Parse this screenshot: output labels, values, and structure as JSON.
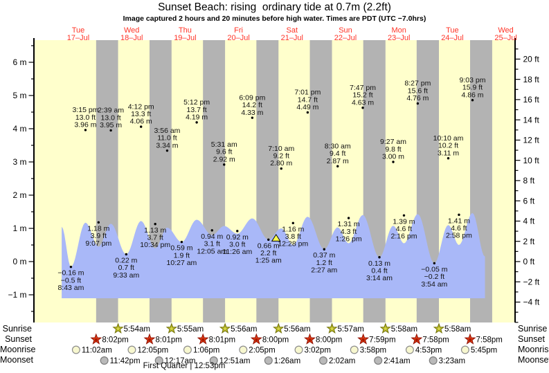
{
  "header": {
    "title": "Sunset Beach: rising  ordinary tide at 0.7m (2.2ft)",
    "subtitle": "Image captured 2 hours and 20 minutes before high water. Times are PDT (UTC −7.0hrs)"
  },
  "colors": {
    "plot_bg": "#ffffcc",
    "night_band": "#b3b3b3",
    "tide_fill": "#a9b8f8",
    "day_label_red": "#ff3326",
    "axis_black": "#000000",
    "event_text": "#111111",
    "sunrise_star_fill": "#b9b92a",
    "sunrise_star_stroke": "#73730a",
    "sunset_star_fill": "#e23d16",
    "sunset_star_stroke": "#8e0f00",
    "sunset_star_center": "#a81800",
    "moonrise_fill": "#f7f7cf",
    "moonrise_stroke": "#8c8c8c",
    "moonset_fill": "#b9b9b9",
    "moonset_stroke": "#7d7d7d",
    "marker_fill": "#ffff4d"
  },
  "chart_data": {
    "type": "area",
    "title": "Sunset Beach: rising ordinary tide at 0.7m (2.2ft)",
    "ylabel_left_unit": "m",
    "ylabel_right_unit": "ft",
    "m_ticks": [
      6,
      5,
      4,
      3,
      2,
      1,
      0,
      -1
    ],
    "ft_ticks": [
      20,
      18,
      16,
      14,
      12,
      10,
      8,
      6,
      4,
      2,
      0,
      -2,
      -4
    ],
    "days": [
      {
        "name": "Tue",
        "date": "17–Jul"
      },
      {
        "name": "Wed",
        "date": "18–Jul"
      },
      {
        "name": "Thu",
        "date": "19–Jul"
      },
      {
        "name": "Fri",
        "date": "20–Jul"
      },
      {
        "name": "Sat",
        "date": "21–Jul"
      },
      {
        "name": "Sun",
        "date": "22–Jul"
      },
      {
        "name": "Mon",
        "date": "23–Jul"
      },
      {
        "name": "Tue",
        "date": "24–Jul"
      },
      {
        "name": "Wed",
        "date": "25–Jul"
      }
    ],
    "events": [
      {
        "d": 0,
        "t": "8:43 am",
        "y": "L",
        "m": "−0.16",
        "ft": "−0.5",
        "c": -0.16
      },
      {
        "d": 0,
        "t": "3:15 pm",
        "y": "H",
        "m": "3.96",
        "ft": "13.0",
        "c": 1.17
      },
      {
        "d": 0,
        "t": "9:07 pm",
        "y": "L",
        "m": "1.18",
        "ft": "3.9",
        "c": 0.45
      },
      {
        "d": 1,
        "t": "2:39 am",
        "y": "H",
        "m": "3.95",
        "ft": "13.0",
        "c": 1.14
      },
      {
        "d": 1,
        "t": "9:33 am",
        "y": "L",
        "m": "0.22",
        "ft": "0.7",
        "c": 0.22
      },
      {
        "d": 1,
        "t": "4:12 pm",
        "y": "H",
        "m": "4.06",
        "ft": "13.3",
        "c": 1.22
      },
      {
        "d": 1,
        "t": "10:34 pm",
        "y": "L",
        "m": "1.13",
        "ft": "3.7",
        "c": 0.4
      },
      {
        "d": 2,
        "t": "3:56 am",
        "y": "H",
        "m": "3.34",
        "ft": "11.0",
        "c": 1.02
      },
      {
        "d": 2,
        "t": "10:27 am",
        "y": "L",
        "m": "0.59",
        "ft": "1.9",
        "c": 0.59
      },
      {
        "d": 2,
        "t": "5:12 pm",
        "y": "H",
        "m": "4.19",
        "ft": "13.7",
        "c": 1.26
      },
      {
        "d": 3,
        "t": "12:05 am",
        "y": "L",
        "m": "0.94",
        "ft": "3.1",
        "c": 0.8
      },
      {
        "d": 3,
        "t": "5:31 am",
        "y": "H",
        "m": "2.92",
        "ft": "9.6",
        "c": 1.07
      },
      {
        "d": 3,
        "t": "11:26 am",
        "y": "L",
        "m": "0.92",
        "ft": "3.0",
        "c": 0.84
      },
      {
        "d": 3,
        "t": "6:09 pm",
        "y": "H",
        "m": "4.33",
        "ft": "14.2",
        "c": 1.3
      },
      {
        "d": 4,
        "t": "1:25 am",
        "y": "L",
        "m": "0.66",
        "ft": "2.2",
        "c": 0.66
      },
      {
        "d": 4,
        "t": "7:10 am",
        "y": "H",
        "m": "2.80",
        "ft": "9.2",
        "c": 1.0
      },
      {
        "d": 4,
        "t": "12:28 pm",
        "y": "L",
        "m": "1.16",
        "ft": "3.8",
        "c": 0.5
      },
      {
        "d": 4,
        "t": "7:01 pm",
        "y": "H",
        "m": "4.49",
        "ft": "14.7",
        "c": 1.35
      },
      {
        "d": 5,
        "t": "2:27 am",
        "y": "L",
        "m": "0.37",
        "ft": "1.2",
        "c": 0.37
      },
      {
        "d": 5,
        "t": "8:30 am",
        "y": "H",
        "m": "2.87",
        "ft": "9.4",
        "c": 1.03
      },
      {
        "d": 5,
        "t": "1:26 pm",
        "y": "L",
        "m": "1.31",
        "ft": "4.3",
        "c": 0.55
      },
      {
        "d": 5,
        "t": "7:47 pm",
        "y": "H",
        "m": "4.63",
        "ft": "15.2",
        "c": 1.4
      },
      {
        "d": 6,
        "t": "3:14 am",
        "y": "L",
        "m": "0.13",
        "ft": "0.4",
        "c": 0.13
      },
      {
        "d": 6,
        "t": "9:27 am",
        "y": "H",
        "m": "3.00",
        "ft": "9.8",
        "c": 1.08
      },
      {
        "d": 6,
        "t": "2:16 pm",
        "y": "L",
        "m": "1.39",
        "ft": "4.6",
        "c": 0.55
      },
      {
        "d": 6,
        "t": "8:27 pm",
        "y": "H",
        "m": "4.76",
        "ft": "15.6",
        "c": 1.43
      },
      {
        "d": 7,
        "t": "3:54 am",
        "y": "L",
        "m": "−0.05",
        "ft": "−0.2",
        "c": -0.05
      },
      {
        "d": 7,
        "t": "10:10 am",
        "y": "H",
        "m": "3.11",
        "ft": "10.2",
        "c": 1.1
      },
      {
        "d": 7,
        "t": "2:58 pm",
        "y": "L",
        "m": "1.41",
        "ft": "4.6",
        "c": 0.5
      },
      {
        "d": 7,
        "t": "9:03 pm",
        "y": "H",
        "m": "4.86",
        "ft": "15.9",
        "c": 1.46
      }
    ],
    "now_marker": {
      "d": 4,
      "t": "4:50 am",
      "m": 0.7
    },
    "curve_edges": {
      "start_day_frac": 0.19,
      "start_m": 1.05,
      "end_day_frac": 8.11,
      "end_m": 0.15
    }
  },
  "astro": {
    "rows": [
      {
        "label": "Sunrise"
      },
      {
        "label": "Sunset"
      },
      {
        "label": "Moonrise"
      },
      {
        "label": "Moonset"
      }
    ],
    "sunrise": [
      {
        "d": 1,
        "time": "5:54am"
      },
      {
        "d": 2,
        "time": "5:55am"
      },
      {
        "d": 3,
        "time": "5:56am"
      },
      {
        "d": 4,
        "time": "5:56am"
      },
      {
        "d": 5,
        "time": "5:57am"
      },
      {
        "d": 6,
        "time": "5:58am"
      },
      {
        "d": 7,
        "time": "5:58am"
      }
    ],
    "sunset": [
      {
        "d": 0,
        "time": "8:02pm"
      },
      {
        "d": 1,
        "time": "8:01pm"
      },
      {
        "d": 2,
        "time": "8:01pm"
      },
      {
        "d": 3,
        "time": "8:00pm"
      },
      {
        "d": 4,
        "time": "8:00pm"
      },
      {
        "d": 5,
        "time": "7:59pm"
      },
      {
        "d": 6,
        "time": "7:58pm"
      },
      {
        "d": 7,
        "time": "7:58pm"
      }
    ],
    "moonrise": [
      {
        "d": 0,
        "time": "11:02am"
      },
      {
        "d": 1,
        "time": "12:05pm"
      },
      {
        "d": 2,
        "time": "1:06pm"
      },
      {
        "d": 3,
        "time": "2:05pm"
      },
      {
        "d": 4,
        "time": "3:02pm"
      },
      {
        "d": 5,
        "time": "3:58pm"
      },
      {
        "d": 6,
        "time": "4:53pm"
      },
      {
        "d": 7,
        "time": "5:45pm"
      }
    ],
    "moonset": [
      {
        "d": 0,
        "time": "11:42pm"
      },
      {
        "d": 2,
        "time": "12:17am"
      },
      {
        "d": 3,
        "time": "12:51am"
      },
      {
        "d": 4,
        "time": "1:26am"
      },
      {
        "d": 5,
        "time": "2:02am"
      },
      {
        "d": 6,
        "time": "2:41am"
      },
      {
        "d": 7,
        "time": "3:23am"
      }
    ],
    "phase_note": "First Quarter | 12:53pm"
  }
}
